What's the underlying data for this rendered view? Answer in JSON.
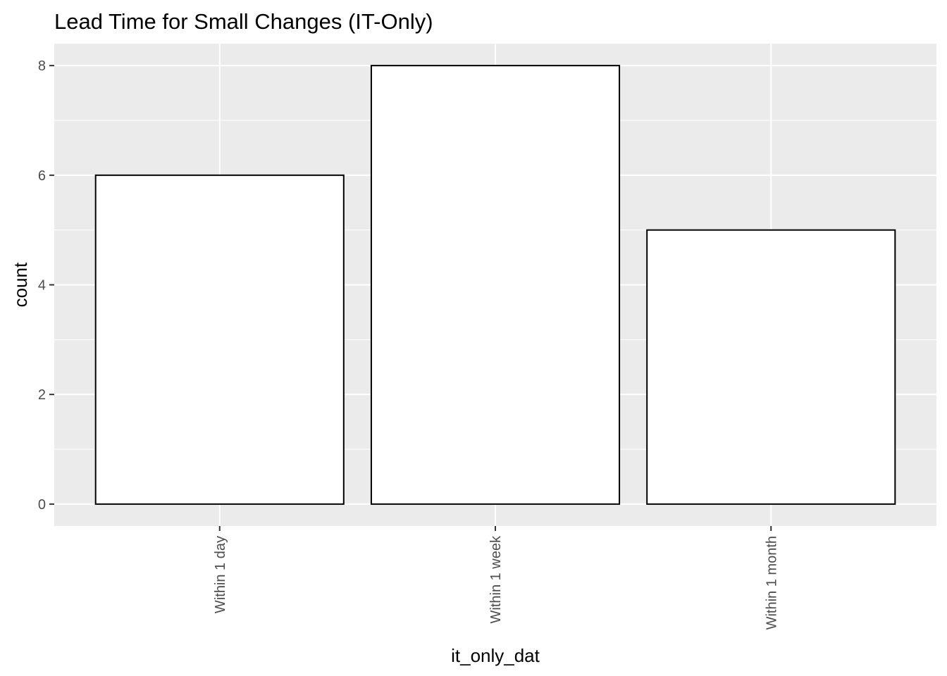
{
  "chart_data": {
    "type": "bar",
    "title": "Lead Time for Small Changes (IT-Only)",
    "xlabel": "it_only_dat",
    "ylabel": "count",
    "categories": [
      "Within 1 day",
      "Within 1 week",
      "Within 1 month"
    ],
    "values": [
      6,
      8,
      5
    ],
    "ylim": [
      -0.4,
      8.4
    ],
    "yticks": [
      0,
      2,
      4,
      6,
      8
    ],
    "grid": true,
    "colors": {
      "panel_background": "#ebebeb",
      "grid_major": "#ffffff",
      "bar_fill": "#ffffff",
      "bar_outline": "#000000",
      "tick": "#333333"
    }
  }
}
